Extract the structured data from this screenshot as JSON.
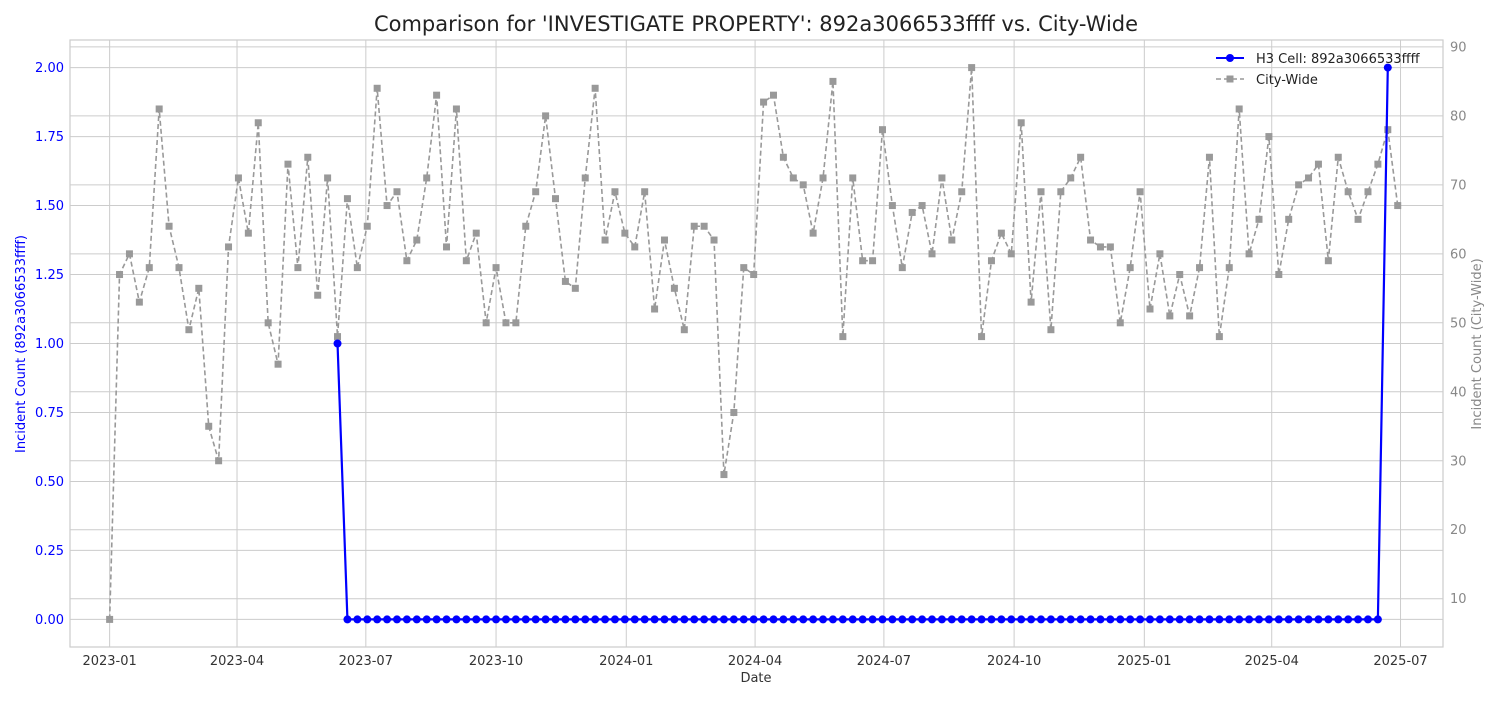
{
  "chart_data": {
    "type": "line",
    "title": "Comparison for 'INVESTIGATE PROPERTY': 892a3066533ffff vs. City-Wide",
    "xlabel": "Date",
    "ylabel_left": "Incident Count (892a3066533ffff)",
    "ylabel_right": "Incident Count (City-Wide)",
    "grid": true,
    "legend_position": "top-right",
    "x_range": [
      "2022-12-04",
      "2025-07-31"
    ],
    "ylim_left": [
      -0.1,
      2.1
    ],
    "ylim_right": [
      3,
      91
    ],
    "x_ticks": [
      "2023-01",
      "2023-04",
      "2023-07",
      "2023-10",
      "2024-01",
      "2024-04",
      "2024-07",
      "2024-10",
      "2025-01",
      "2025-04",
      "2025-07"
    ],
    "x_tick_dates": [
      "2023-01-01",
      "2023-04-01",
      "2023-07-01",
      "2023-10-01",
      "2024-01-01",
      "2024-04-01",
      "2024-07-01",
      "2024-10-01",
      "2025-01-01",
      "2025-04-01",
      "2025-07-01"
    ],
    "y_ticks_left": [
      "0.00",
      "0.25",
      "0.50",
      "0.75",
      "1.00",
      "1.25",
      "1.50",
      "1.75",
      "2.00"
    ],
    "y_ticks_right": [
      "10",
      "20",
      "30",
      "40",
      "50",
      "60",
      "70",
      "80",
      "90"
    ],
    "series": [
      {
        "name": "H3 Cell: 892a3066533ffff",
        "axis": "left",
        "color": "#0000ff",
        "style": "solid",
        "marker": "circle",
        "x": [
          "2023-06-11",
          "2023-06-18",
          "2023-06-25",
          "2023-07-02",
          "2023-07-09",
          "2023-07-16",
          "2023-07-23",
          "2023-07-30",
          "2023-08-06",
          "2023-08-13",
          "2023-08-20",
          "2023-08-27",
          "2023-09-03",
          "2023-09-10",
          "2023-09-17",
          "2023-09-24",
          "2023-10-01",
          "2023-10-08",
          "2023-10-15",
          "2023-10-22",
          "2023-10-29",
          "2023-11-05",
          "2023-11-12",
          "2023-11-19",
          "2023-11-26",
          "2023-12-03",
          "2023-12-10",
          "2023-12-17",
          "2023-12-24",
          "2023-12-31",
          "2024-01-07",
          "2024-01-14",
          "2024-01-21",
          "2024-01-28",
          "2024-02-04",
          "2024-02-11",
          "2024-02-18",
          "2024-02-25",
          "2024-03-03",
          "2024-03-10",
          "2024-03-17",
          "2024-03-24",
          "2024-03-31",
          "2024-04-07",
          "2024-04-14",
          "2024-04-21",
          "2024-04-28",
          "2024-05-05",
          "2024-05-12",
          "2024-05-19",
          "2024-05-26",
          "2024-06-02",
          "2024-06-09",
          "2024-06-16",
          "2024-06-23",
          "2024-06-30",
          "2024-07-07",
          "2024-07-14",
          "2024-07-21",
          "2024-07-28",
          "2024-08-04",
          "2024-08-11",
          "2024-08-18",
          "2024-08-25",
          "2024-09-01",
          "2024-09-08",
          "2024-09-15",
          "2024-09-22",
          "2024-09-29",
          "2024-10-06",
          "2024-10-13",
          "2024-10-20",
          "2024-10-27",
          "2024-11-03",
          "2024-11-10",
          "2024-11-17",
          "2024-11-24",
          "2024-12-01",
          "2024-12-08",
          "2024-12-15",
          "2024-12-22",
          "2024-12-29",
          "2025-01-05",
          "2025-01-12",
          "2025-01-19",
          "2025-01-26",
          "2025-02-02",
          "2025-02-09",
          "2025-02-16",
          "2025-02-23",
          "2025-03-02",
          "2025-03-09",
          "2025-03-16",
          "2025-03-23",
          "2025-03-30",
          "2025-04-06",
          "2025-04-13",
          "2025-04-20",
          "2025-04-27",
          "2025-05-04",
          "2025-05-11",
          "2025-05-18",
          "2025-05-25",
          "2025-06-01",
          "2025-06-08",
          "2025-06-15",
          "2025-06-22"
        ],
        "values": [
          1,
          0,
          0,
          0,
          0,
          0,
          0,
          0,
          0,
          0,
          0,
          0,
          0,
          0,
          0,
          0,
          0,
          0,
          0,
          0,
          0,
          0,
          0,
          0,
          0,
          0,
          0,
          0,
          0,
          0,
          0,
          0,
          0,
          0,
          0,
          0,
          0,
          0,
          0,
          0,
          0,
          0,
          0,
          0,
          0,
          0,
          0,
          0,
          0,
          0,
          0,
          0,
          0,
          0,
          0,
          0,
          0,
          0,
          0,
          0,
          0,
          0,
          0,
          0,
          0,
          0,
          0,
          0,
          0,
          0,
          0,
          0,
          0,
          0,
          0,
          0,
          0,
          0,
          0,
          0,
          0,
          0,
          0,
          0,
          0,
          0,
          0,
          0,
          0,
          0,
          0,
          0,
          0,
          0,
          0,
          0,
          0,
          0,
          0,
          0,
          0,
          0,
          0,
          0,
          0,
          0,
          2
        ]
      },
      {
        "name": "City-Wide",
        "axis": "right",
        "color": "#999999",
        "style": "dashed",
        "marker": "square",
        "x": [
          "2023-01-01",
          "2023-01-08",
          "2023-01-15",
          "2023-01-22",
          "2023-01-29",
          "2023-02-05",
          "2023-02-12",
          "2023-02-19",
          "2023-02-26",
          "2023-03-05",
          "2023-03-12",
          "2023-03-19",
          "2023-03-26",
          "2023-04-02",
          "2023-04-09",
          "2023-04-16",
          "2023-04-23",
          "2023-04-30",
          "2023-05-07",
          "2023-05-14",
          "2023-05-21",
          "2023-05-28",
          "2023-06-04",
          "2023-06-11",
          "2023-06-18",
          "2023-06-25",
          "2023-07-02",
          "2023-07-09",
          "2023-07-16",
          "2023-07-23",
          "2023-07-30",
          "2023-08-06",
          "2023-08-13",
          "2023-08-20",
          "2023-08-27",
          "2023-09-03",
          "2023-09-10",
          "2023-09-17",
          "2023-09-24",
          "2023-10-01",
          "2023-10-08",
          "2023-10-15",
          "2023-10-22",
          "2023-10-29",
          "2023-11-05",
          "2023-11-12",
          "2023-11-19",
          "2023-11-26",
          "2023-12-03",
          "2023-12-10",
          "2023-12-17",
          "2023-12-24",
          "2023-12-31",
          "2024-01-07",
          "2024-01-14",
          "2024-01-21",
          "2024-01-28",
          "2024-02-04",
          "2024-02-11",
          "2024-02-18",
          "2024-02-25",
          "2024-03-03",
          "2024-03-10",
          "2024-03-17",
          "2024-03-24",
          "2024-03-31",
          "2024-04-07",
          "2024-04-14",
          "2024-04-21",
          "2024-04-28",
          "2024-05-05",
          "2024-05-12",
          "2024-05-19",
          "2024-05-26",
          "2024-06-02",
          "2024-06-09",
          "2024-06-16",
          "2024-06-23",
          "2024-06-30",
          "2024-07-07",
          "2024-07-14",
          "2024-07-21",
          "2024-07-28",
          "2024-08-04",
          "2024-08-11",
          "2024-08-18",
          "2024-08-25",
          "2024-09-01",
          "2024-09-08",
          "2024-09-15",
          "2024-09-22",
          "2024-09-29",
          "2024-10-06",
          "2024-10-13",
          "2024-10-20",
          "2024-10-27",
          "2024-11-03",
          "2024-11-10",
          "2024-11-17",
          "2024-11-24",
          "2024-12-01",
          "2024-12-08",
          "2024-12-15",
          "2024-12-22",
          "2024-12-29",
          "2025-01-05",
          "2025-01-12",
          "2025-01-19",
          "2025-01-26",
          "2025-02-02",
          "2025-02-09",
          "2025-02-16",
          "2025-02-23",
          "2025-03-02",
          "2025-03-09",
          "2025-03-16",
          "2025-03-23",
          "2025-03-30",
          "2025-04-06",
          "2025-04-13",
          "2025-04-20",
          "2025-04-27",
          "2025-05-04",
          "2025-05-11",
          "2025-05-18",
          "2025-05-25",
          "2025-06-01",
          "2025-06-08",
          "2025-06-15",
          "2025-06-22",
          "2025-06-29"
        ],
        "values": [
          7,
          57,
          60,
          53,
          58,
          81,
          64,
          58,
          49,
          55,
          35,
          30,
          61,
          71,
          63,
          79,
          50,
          44,
          73,
          58,
          74,
          54,
          71,
          48,
          68,
          58,
          64,
          84,
          67,
          69,
          59,
          62,
          71,
          83,
          61,
          81,
          59,
          63,
          50,
          58,
          50,
          50,
          64,
          69,
          80,
          68,
          56,
          55,
          71,
          84,
          62,
          69,
          63,
          61,
          69,
          52,
          62,
          55,
          49,
          64,
          64,
          62,
          28,
          37,
          58,
          57,
          82,
          83,
          74,
          71,
          70,
          63,
          71,
          85,
          48,
          71,
          59,
          59,
          78,
          67,
          58,
          66,
          67,
          60,
          71,
          62,
          69,
          87,
          48,
          59,
          63,
          60,
          79,
          53,
          69,
          49,
          69,
          71,
          74,
          62,
          61,
          61,
          50,
          58,
          69,
          52,
          60,
          51,
          57,
          51,
          58,
          74,
          48,
          58,
          81,
          60,
          65,
          77,
          57,
          65,
          70,
          71,
          73,
          59,
          74,
          69,
          65,
          69,
          73,
          78,
          67
        ]
      }
    ]
  }
}
